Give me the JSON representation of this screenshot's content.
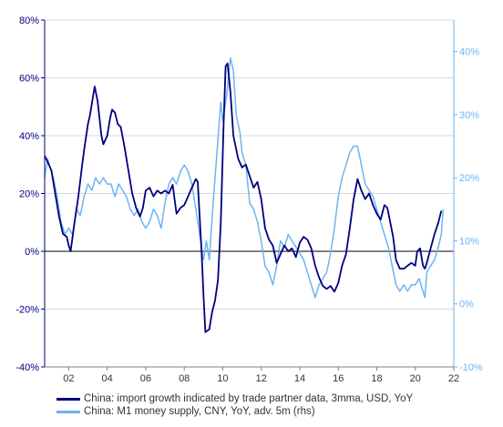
{
  "chart_data": {
    "type": "line",
    "x_ticks": [
      "02",
      "04",
      "06",
      "08",
      "10",
      "12",
      "14",
      "16",
      "18",
      "20",
      "22"
    ],
    "xlim": [
      2000.75,
      2022.0
    ],
    "left_axis": {
      "ylim": [
        -40,
        80
      ],
      "ticks": [
        "-40%",
        "-20%",
        "0%",
        "20%",
        "40%",
        "60%",
        "80%"
      ],
      "tick_values": [
        -40,
        -20,
        0,
        20,
        40,
        60,
        80
      ]
    },
    "right_axis": {
      "ylim": [
        -10,
        45
      ],
      "ticks": [
        "-10%",
        "0%",
        "10%",
        "20%",
        "30%",
        "40%"
      ],
      "tick_values": [
        -10,
        0,
        10,
        20,
        30,
        40
      ]
    },
    "grid": true,
    "zero_line": true,
    "legend_position": "bottom",
    "colors": {
      "imports": "#000080",
      "m1": "#6EB4F0",
      "left_axis": "#000080",
      "right_axis": "#6EB4F0",
      "grid": "#D9D9D9"
    },
    "series": [
      {
        "name": "China: import growth indicated by trade partner data, 3mma, USD, YoY",
        "axis": "left",
        "points": [
          [
            2000.75,
            33
          ],
          [
            2000.9,
            31
          ],
          [
            2001.1,
            28
          ],
          [
            2001.3,
            20
          ],
          [
            2001.5,
            12
          ],
          [
            2001.7,
            6
          ],
          [
            2001.9,
            5
          ],
          [
            2002.0,
            2
          ],
          [
            2002.1,
            0
          ],
          [
            2002.3,
            10
          ],
          [
            2002.5,
            19
          ],
          [
            2002.7,
            30
          ],
          [
            2002.8,
            35
          ],
          [
            2003.0,
            44
          ],
          [
            2003.1,
            47
          ],
          [
            2003.25,
            53
          ],
          [
            2003.35,
            57
          ],
          [
            2003.5,
            52
          ],
          [
            2003.7,
            40
          ],
          [
            2003.8,
            37
          ],
          [
            2004.0,
            40
          ],
          [
            2004.15,
            46
          ],
          [
            2004.25,
            49
          ],
          [
            2004.4,
            48
          ],
          [
            2004.55,
            44
          ],
          [
            2004.7,
            43
          ],
          [
            2004.9,
            36
          ],
          [
            2005.1,
            28
          ],
          [
            2005.3,
            20
          ],
          [
            2005.5,
            15
          ],
          [
            2005.7,
            12
          ],
          [
            2005.85,
            15
          ],
          [
            2006.0,
            21
          ],
          [
            2006.2,
            22
          ],
          [
            2006.4,
            19
          ],
          [
            2006.6,
            21
          ],
          [
            2006.8,
            20
          ],
          [
            2007.0,
            21
          ],
          [
            2007.2,
            20
          ],
          [
            2007.4,
            23
          ],
          [
            2007.6,
            13
          ],
          [
            2007.8,
            15
          ],
          [
            2008.0,
            16
          ],
          [
            2008.2,
            19
          ],
          [
            2008.4,
            22
          ],
          [
            2008.6,
            25
          ],
          [
            2008.7,
            24
          ],
          [
            2008.8,
            12
          ],
          [
            2008.9,
            0
          ],
          [
            2009.0,
            -15
          ],
          [
            2009.1,
            -28
          ],
          [
            2009.3,
            -27
          ],
          [
            2009.45,
            -21
          ],
          [
            2009.6,
            -17
          ],
          [
            2009.75,
            -10
          ],
          [
            2009.9,
            10
          ],
          [
            2010.05,
            45
          ],
          [
            2010.15,
            64
          ],
          [
            2010.25,
            65
          ],
          [
            2010.4,
            55
          ],
          [
            2010.55,
            40
          ],
          [
            2010.8,
            32
          ],
          [
            2011.0,
            29
          ],
          [
            2011.2,
            30
          ],
          [
            2011.4,
            26
          ],
          [
            2011.6,
            22
          ],
          [
            2011.8,
            24
          ],
          [
            2012.0,
            18
          ],
          [
            2012.2,
            8
          ],
          [
            2012.4,
            4
          ],
          [
            2012.6,
            2
          ],
          [
            2012.8,
            -4
          ],
          [
            2013.0,
            -1
          ],
          [
            2013.2,
            2
          ],
          [
            2013.4,
            0
          ],
          [
            2013.6,
            1
          ],
          [
            2013.8,
            -2
          ],
          [
            2014.0,
            3
          ],
          [
            2014.2,
            5
          ],
          [
            2014.4,
            4
          ],
          [
            2014.6,
            1
          ],
          [
            2014.8,
            -5
          ],
          [
            2015.0,
            -9
          ],
          [
            2015.2,
            -12
          ],
          [
            2015.4,
            -13
          ],
          [
            2015.6,
            -12
          ],
          [
            2015.8,
            -14
          ],
          [
            2016.0,
            -11
          ],
          [
            2016.2,
            -5
          ],
          [
            2016.4,
            -1
          ],
          [
            2016.6,
            8
          ],
          [
            2016.8,
            18
          ],
          [
            2017.0,
            25
          ],
          [
            2017.2,
            21
          ],
          [
            2017.4,
            18
          ],
          [
            2017.6,
            20
          ],
          [
            2017.8,
            16
          ],
          [
            2018.0,
            13
          ],
          [
            2018.2,
            11
          ],
          [
            2018.4,
            16
          ],
          [
            2018.55,
            15
          ],
          [
            2018.7,
            10
          ],
          [
            2018.85,
            5
          ],
          [
            2019.0,
            -3
          ],
          [
            2019.2,
            -6
          ],
          [
            2019.4,
            -6
          ],
          [
            2019.6,
            -5
          ],
          [
            2019.8,
            -4
          ],
          [
            2020.0,
            -5
          ],
          [
            2020.1,
            0
          ],
          [
            2020.25,
            1
          ],
          [
            2020.4,
            -5
          ],
          [
            2020.5,
            -6
          ],
          [
            2020.6,
            -4
          ],
          [
            2020.8,
            1
          ],
          [
            2021.0,
            6
          ],
          [
            2021.2,
            10
          ],
          [
            2021.35,
            14
          ]
        ]
      },
      {
        "name": "China: M1 money supply, CNY, YoY, adv. 5m (rhs)",
        "axis": "right",
        "points": [
          [
            2000.75,
            20
          ],
          [
            2000.9,
            23
          ],
          [
            2001.0,
            22
          ],
          [
            2001.2,
            20
          ],
          [
            2001.4,
            17
          ],
          [
            2001.6,
            13
          ],
          [
            2001.8,
            11
          ],
          [
            2002.0,
            12
          ],
          [
            2002.2,
            11
          ],
          [
            2002.4,
            15
          ],
          [
            2002.6,
            14
          ],
          [
            2002.8,
            17
          ],
          [
            2003.0,
            19
          ],
          [
            2003.2,
            18
          ],
          [
            2003.4,
            20
          ],
          [
            2003.6,
            19
          ],
          [
            2003.8,
            20
          ],
          [
            2004.0,
            19
          ],
          [
            2004.2,
            19
          ],
          [
            2004.4,
            17
          ],
          [
            2004.6,
            19
          ],
          [
            2004.8,
            18
          ],
          [
            2005.0,
            17
          ],
          [
            2005.2,
            15
          ],
          [
            2005.4,
            14
          ],
          [
            2005.6,
            15
          ],
          [
            2005.8,
            13
          ],
          [
            2006.0,
            12
          ],
          [
            2006.2,
            13
          ],
          [
            2006.4,
            15
          ],
          [
            2006.6,
            14
          ],
          [
            2006.8,
            12
          ],
          [
            2007.0,
            16
          ],
          [
            2007.2,
            19
          ],
          [
            2007.4,
            20
          ],
          [
            2007.6,
            19
          ],
          [
            2007.8,
            21
          ],
          [
            2008.0,
            22
          ],
          [
            2008.2,
            21
          ],
          [
            2008.4,
            19
          ],
          [
            2008.6,
            15
          ],
          [
            2008.8,
            11
          ],
          [
            2009.0,
            7
          ],
          [
            2009.15,
            10
          ],
          [
            2009.3,
            7
          ],
          [
            2009.5,
            16
          ],
          [
            2009.7,
            24
          ],
          [
            2009.9,
            32
          ],
          [
            2010.0,
            29
          ],
          [
            2010.2,
            33
          ],
          [
            2010.4,
            39
          ],
          [
            2010.55,
            37
          ],
          [
            2010.7,
            30
          ],
          [
            2010.9,
            27
          ],
          [
            2011.0,
            24
          ],
          [
            2011.2,
            22
          ],
          [
            2011.4,
            16
          ],
          [
            2011.6,
            15
          ],
          [
            2011.8,
            13
          ],
          [
            2012.0,
            10
          ],
          [
            2012.2,
            6
          ],
          [
            2012.4,
            5
          ],
          [
            2012.6,
            3
          ],
          [
            2012.8,
            6
          ],
          [
            2013.0,
            10
          ],
          [
            2013.2,
            9
          ],
          [
            2013.4,
            11
          ],
          [
            2013.6,
            10
          ],
          [
            2013.8,
            9
          ],
          [
            2014.0,
            8
          ],
          [
            2014.2,
            7
          ],
          [
            2014.4,
            5
          ],
          [
            2014.6,
            3
          ],
          [
            2014.8,
            1
          ],
          [
            2015.0,
            3
          ],
          [
            2015.2,
            4
          ],
          [
            2015.4,
            5
          ],
          [
            2015.6,
            8
          ],
          [
            2015.8,
            12
          ],
          [
            2016.0,
            17
          ],
          [
            2016.2,
            20
          ],
          [
            2016.4,
            22
          ],
          [
            2016.6,
            24
          ],
          [
            2016.8,
            25
          ],
          [
            2017.0,
            25
          ],
          [
            2017.2,
            22
          ],
          [
            2017.4,
            19
          ],
          [
            2017.6,
            18
          ],
          [
            2017.8,
            17
          ],
          [
            2018.0,
            15
          ],
          [
            2018.2,
            13
          ],
          [
            2018.4,
            11
          ],
          [
            2018.6,
            9
          ],
          [
            2018.8,
            6
          ],
          [
            2019.0,
            3
          ],
          [
            2019.2,
            2
          ],
          [
            2019.4,
            3
          ],
          [
            2019.6,
            2
          ],
          [
            2019.8,
            3
          ],
          [
            2020.0,
            3
          ],
          [
            2020.2,
            4
          ],
          [
            2020.4,
            2
          ],
          [
            2020.5,
            1
          ],
          [
            2020.6,
            5
          ],
          [
            2020.8,
            6
          ],
          [
            2021.0,
            7
          ],
          [
            2021.2,
            9
          ],
          [
            2021.35,
            11
          ],
          [
            2021.45,
            15
          ]
        ]
      }
    ]
  }
}
